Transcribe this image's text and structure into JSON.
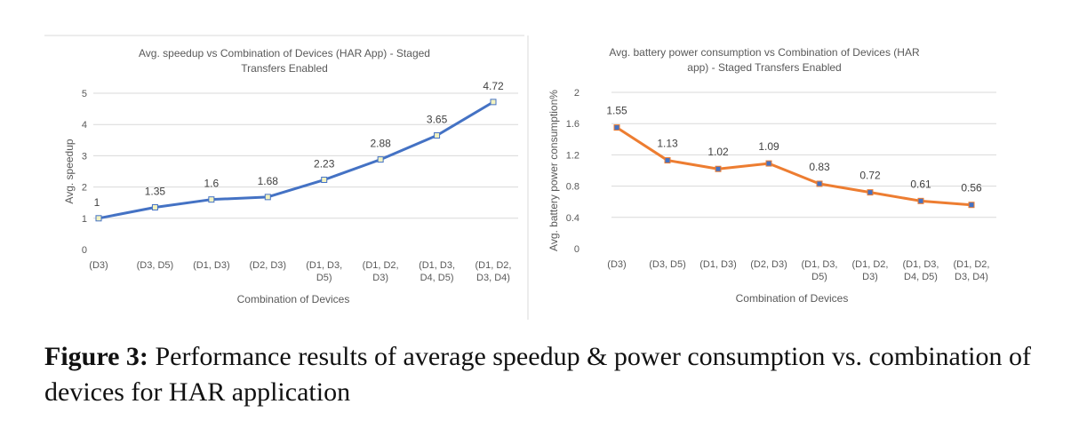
{
  "caption": {
    "label": "Figure 3:",
    "text": "Performance results of average speedup & power consumption vs. combination of devices for HAR application"
  },
  "chart_data": [
    {
      "type": "line",
      "title_lines": [
        "Avg. speedup vs Combination of Devices (HAR App) -    Staged",
        "Transfers Enabled"
      ],
      "xlabel": "Combination of Devices",
      "ylabel": "Avg. speedup",
      "categories": [
        [
          "(D3)"
        ],
        [
          "(D3, D5)"
        ],
        [
          "(D1, D3)"
        ],
        [
          "(D2, D3)"
        ],
        [
          "(D1, D3,",
          "D5)"
        ],
        [
          "(D1, D2,",
          "D3)"
        ],
        [
          "(D1, D3,",
          "D4, D5)"
        ],
        [
          "(D1, D2,",
          "D3, D4)"
        ]
      ],
      "values": [
        1,
        1.35,
        1.6,
        1.68,
        2.23,
        2.88,
        3.65,
        4.72
      ],
      "data_labels": [
        "1",
        "1.35",
        "1.6",
        "1.68",
        "2.23",
        "2.88",
        "3.65",
        "4.72"
      ],
      "yticks": [
        "0",
        "1",
        "2",
        "3",
        "4",
        "5"
      ],
      "ylim": [
        0,
        5
      ],
      "line_color": "#4472c4",
      "marker_fill": "#f2f2c0",
      "grid": true
    },
    {
      "type": "line",
      "title_lines": [
        "Avg. battery power consumption vs Combination of Devices (HAR",
        "app) - Staged Transfers Enabled"
      ],
      "xlabel": "Combination of Devices",
      "ylabel": "Avg. battery power consumption%",
      "categories": [
        [
          "(D3)"
        ],
        [
          "(D3, D5)"
        ],
        [
          "(D1, D3)"
        ],
        [
          "(D2, D3)"
        ],
        [
          "(D1, D3,",
          "D5)"
        ],
        [
          "(D1, D2,",
          "D3)"
        ],
        [
          "(D1, D3,",
          "D4, D5)"
        ],
        [
          "(D1, D2,",
          "D3, D4)"
        ]
      ],
      "values": [
        1.55,
        1.13,
        1.02,
        1.09,
        0.83,
        0.72,
        0.61,
        0.56
      ],
      "data_labels": [
        "1.55",
        "1.13",
        "1.02",
        "1.09",
        "0.83",
        "0.72",
        "0.61",
        "0.56"
      ],
      "yticks": [
        "0",
        "0.4",
        "0.8",
        "1.2",
        "1.6",
        "2"
      ],
      "ylim": [
        0,
        2
      ],
      "line_color": "#ed7d31",
      "marker_fill": "#4472c4",
      "grid": true
    }
  ]
}
